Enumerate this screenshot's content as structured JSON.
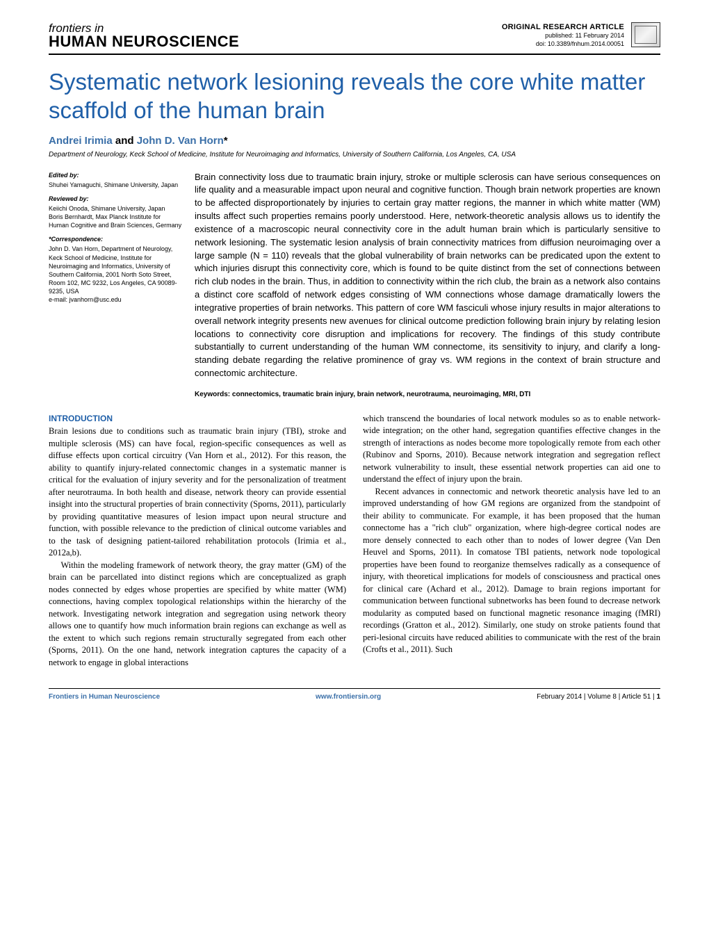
{
  "header": {
    "journal_top": "frontiers in",
    "journal_bottom": "HUMAN NEUROSCIENCE",
    "article_type": "ORIGINAL RESEARCH ARTICLE",
    "published": "published: 11 February 2014",
    "doi": "doi: 10.3389/fnhum.2014.00051"
  },
  "title": "Systematic network lesioning reveals the core white matter scaffold of the human brain",
  "authors_html": "Andrei Irimia and John D. Van Horn*",
  "affiliation": "Department of Neurology, Keck School of Medicine, Institute for Neuroimaging and Informatics, University of Southern California, Los Angeles, CA, USA",
  "sidebar": {
    "edited_label": "Edited by:",
    "edited_text": "Shuhei Yamaguchi, Shimane University, Japan",
    "reviewed_label": "Reviewed by:",
    "reviewed_text": "Keiichi Onoda, Shimane University, Japan\nBoris Bernhardt, Max Planck Institute for Human Cognitive and Brain Sciences, Germany",
    "corr_label": "*Correspondence:",
    "corr_text": "John D. Van Horn, Department of Neurology, Keck School of Medicine, Institute for Neuroimaging and Informatics, University of Southern California, 2001 North Soto Street, Room 102, MC 9232, Los Angeles, CA 90089-9235, USA\ne-mail: jvanhorn@usc.edu"
  },
  "abstract": "Brain connectivity loss due to traumatic brain injury, stroke or multiple sclerosis can have serious consequences on life quality and a measurable impact upon neural and cognitive function. Though brain network properties are known to be affected disproportionately by injuries to certain gray matter regions, the manner in which white matter (WM) insults affect such properties remains poorly understood. Here, network-theoretic analysis allows us to identify the existence of a macroscopic neural connectivity core in the adult human brain which is particularly sensitive to network lesioning. The systematic lesion analysis of brain connectivity matrices from diffusion neuroimaging over a large sample (N = 110) reveals that the global vulnerability of brain networks can be predicated upon the extent to which injuries disrupt this connectivity core, which is found to be quite distinct from the set of connections between rich club nodes in the brain. Thus, in addition to connectivity within the rich club, the brain as a network also contains a distinct core scaffold of network edges consisting of WM connections whose damage dramatically lowers the integrative properties of brain networks. This pattern of core WM fasciculi whose injury results in major alterations to overall network integrity presents new avenues for clinical outcome prediction following brain injury by relating lesion locations to connectivity core disruption and implications for recovery. The findings of this study contribute substantially to current understanding of the human WM connectome, its sensitivity to injury, and clarify a long-standing debate regarding the relative prominence of gray vs. WM regions in the context of brain structure and connectomic architecture.",
  "keywords": "Keywords: connectomics, traumatic brain injury, brain network, neurotrauma, neuroimaging, MRI, DTI",
  "section_heading": "INTRODUCTION",
  "body": {
    "col1_p1": "Brain lesions due to conditions such as traumatic brain injury (TBI), stroke and multiple sclerosis (MS) can have focal, region-specific consequences as well as diffuse effects upon cortical circuitry (Van Horn et al., 2012). For this reason, the ability to quantify injury-related connectomic changes in a systematic manner is critical for the evaluation of injury severity and for the personalization of treatment after neurotrauma. In both health and disease, network theory can provide essential insight into the structural properties of brain connectivity (Sporns, 2011), particularly by providing quantitative measures of lesion impact upon neural structure and function, with possible relevance to the prediction of clinical outcome variables and to the task of designing patient-tailored rehabilitation protocols (Irimia et al., 2012a,b).",
    "col1_p2": "Within the modeling framework of network theory, the gray matter (GM) of the brain can be parcellated into distinct regions which are conceptualized as graph nodes connected by edges whose properties are specified by white matter (WM) connections, having complex topological relationships within the hierarchy of the network. Investigating network integration and segregation using network theory allows one to quantify how much information brain regions can exchange as well as the extent to which such regions remain structurally segregated from each other (Sporns, 2011). On the one hand, network integration captures the capacity of a network to engage in global interactions",
    "col2_p1": "which transcend the boundaries of local network modules so as to enable network-wide integration; on the other hand, segregation quantifies effective changes in the strength of interactions as nodes become more topologically remote from each other (Rubinov and Sporns, 2010). Because network integration and segregation reflect network vulnerability to insult, these essential network properties can aid one to understand the effect of injury upon the brain.",
    "col2_p2": "Recent advances in connectomic and network theoretic analysis have led to an improved understanding of how GM regions are organized from the standpoint of their ability to communicate. For example, it has been proposed that the human connectome has a \"rich club\" organization, where high-degree cortical nodes are more densely connected to each other than to nodes of lower degree (Van Den Heuvel and Sporns, 2011). In comatose TBI patients, network node topological properties have been found to reorganize themselves radically as a consequence of injury, with theoretical implications for models of consciousness and practical ones for clinical care (Achard et al., 2012). Damage to brain regions important for communication between functional subnetworks has been found to decrease network modularity as computed based on functional magnetic resonance imaging (fMRI) recordings (Gratton et al., 2012). Similarly, one study on stroke patients found that peri-lesional circuits have reduced abilities to communicate with the rest of the brain (Crofts et al., 2011). Such"
  },
  "footer": {
    "left": "Frontiers in Human Neuroscience",
    "mid": "www.frontiersin.org",
    "right_date": "February 2014 | Volume 8 | Article 51 | ",
    "right_page": "1"
  },
  "colors": {
    "title": "#1f5fa8",
    "link": "#3a6fa8",
    "text": "#000000",
    "background": "#ffffff"
  },
  "typography": {
    "title_fontsize": 33,
    "abstract_fontsize": 13,
    "body_fontsize": 12.5,
    "sidebar_fontsize": 9,
    "footer_fontsize": 10
  }
}
